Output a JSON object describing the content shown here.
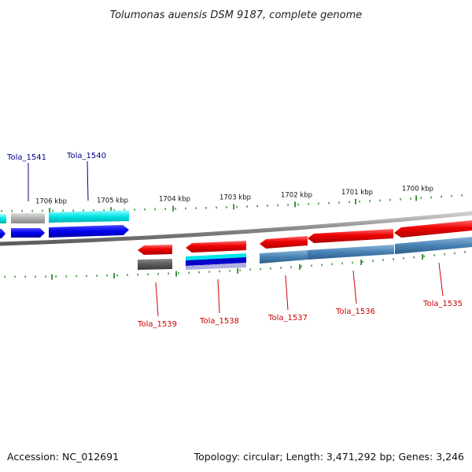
{
  "title": "Tolumonas auensis DSM 9187, complete genome",
  "footer": {
    "accession": "Accession: NC_012691",
    "summary": "Topology: circular; Length: 3,471,292 bp; Genes: 3,246"
  },
  "colors": {
    "forward_label": "#00008b",
    "reverse_label": "#cc0000",
    "tick": "#2e8b2e",
    "backbone": "#8a8a8a"
  },
  "ticks": [
    {
      "label": "1706 kbp"
    },
    {
      "label": "1705 kbp"
    },
    {
      "label": "1704 kbp"
    },
    {
      "label": "1703 kbp"
    },
    {
      "label": "1702 kbp"
    },
    {
      "label": "1701 kbp"
    },
    {
      "label": "1700 kbp"
    }
  ],
  "gene_labels": [
    {
      "text": "Tola_1541",
      "strand": "forward"
    },
    {
      "text": "Tola_1540",
      "strand": "forward"
    },
    {
      "text": "Tola_1539",
      "strand": "reverse"
    },
    {
      "text": "Tola_1538",
      "strand": "reverse"
    },
    {
      "text": "Tola_1537",
      "strand": "reverse"
    },
    {
      "text": "Tola_1536",
      "strand": "reverse"
    },
    {
      "text": "Tola_1535",
      "strand": "reverse"
    }
  ]
}
